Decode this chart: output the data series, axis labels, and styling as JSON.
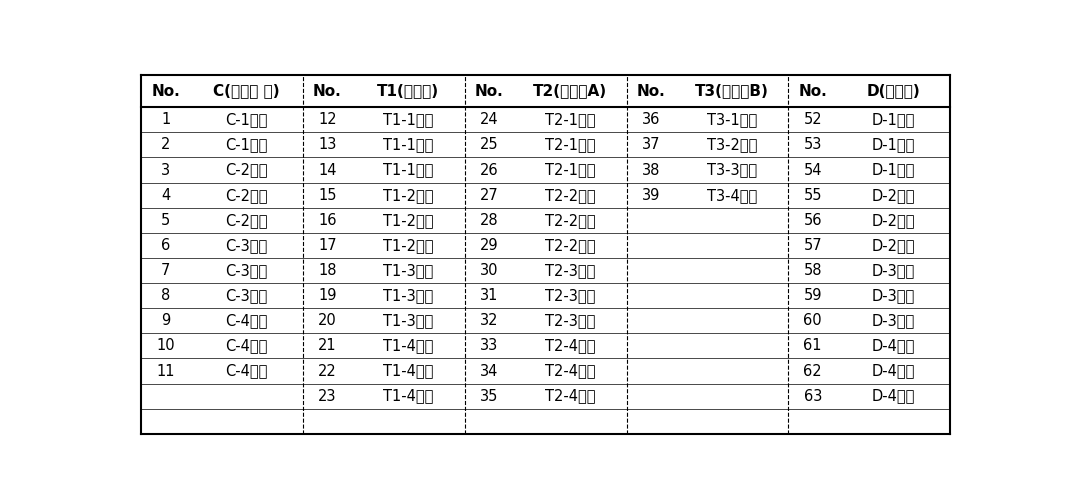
{
  "headers": [
    "No.",
    "C(항생제 무)",
    "No.",
    "T1(항생제)",
    "No.",
    "T2(생균제A)",
    "No.",
    "T3(생균제B)",
    "No.",
    "D(설사구)"
  ],
  "columns": {
    "C": {
      "nos": [
        "1",
        "2",
        "3",
        "4",
        "5",
        "6",
        "7",
        "8",
        "9",
        "10",
        "11"
      ],
      "vals": [
        "C-1맹장",
        "C-1결장",
        "C-2맹장",
        "C-2결장",
        "C-2직장",
        "C-3맹장",
        "C-3결장",
        "C-3직장",
        "C-4맹장",
        "C-4결장",
        "C-4직장"
      ]
    },
    "T1": {
      "nos": [
        "12",
        "13",
        "14",
        "15",
        "16",
        "17",
        "18",
        "19",
        "20",
        "21",
        "22",
        "23"
      ],
      "vals": [
        "T1-1맹장",
        "T1-1결장",
        "T1-1직장",
        "T1-2맹장",
        "T1-2결장",
        "T1-2직장",
        "T1-3맹장",
        "T1-3결장",
        "T1-3직장",
        "T1-4맹장",
        "T1-4결장",
        "T1-4직장"
      ]
    },
    "T2": {
      "nos": [
        "24",
        "25",
        "26",
        "27",
        "28",
        "29",
        "30",
        "31",
        "32",
        "33",
        "34",
        "35"
      ],
      "vals": [
        "T2-1맹장",
        "T2-1결장",
        "T2-1직장",
        "T2-2맹장",
        "T2-2결장",
        "T2-2직장",
        "T2-3맹장",
        "T2-3결장",
        "T2-3직장",
        "T2-4맹장",
        "T2-4결장",
        "T2-4직장"
      ]
    },
    "T3": {
      "nos": [
        "36",
        "37",
        "38",
        "39"
      ],
      "vals": [
        "T3-1직장",
        "T3-2직장",
        "T3-3직장",
        "T3-4직장"
      ]
    },
    "D": {
      "nos": [
        "52",
        "53",
        "54",
        "55",
        "56",
        "57",
        "58",
        "59",
        "60",
        "61",
        "62",
        "63"
      ],
      "vals": [
        "D-1맹장",
        "D-1결장",
        "D-1직장",
        "D-2맹장",
        "D-2결장",
        "D-2직장",
        "D-3맹장",
        "D-3결장",
        "D-3직장",
        "D-4맹장",
        "D-4결장",
        "D-4직장"
      ]
    }
  },
  "bg_color": "#ffffff",
  "text_color": "#000000",
  "header_fontsize": 11,
  "cell_fontsize": 10.5,
  "fig_width": 10.65,
  "fig_height": 4.96
}
